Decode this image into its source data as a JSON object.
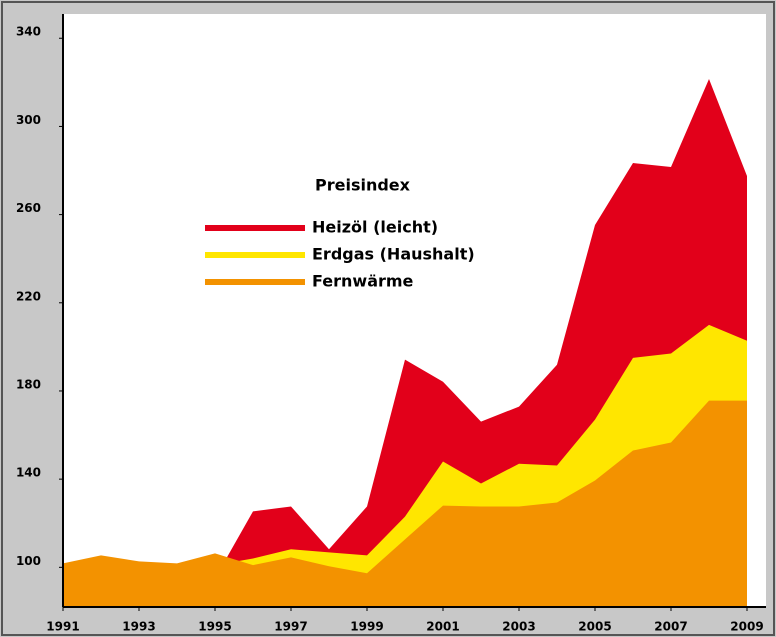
{
  "chart_data": {
    "type": "area",
    "legend_title": "Preisindex",
    "x": [
      1991,
      1992,
      1993,
      1994,
      1995,
      1996,
      1997,
      1998,
      1999,
      2000,
      2001,
      2002,
      2003,
      2004,
      2005,
      2006,
      2007,
      2008,
      2009
    ],
    "series": [
      {
        "name": "Heizöl (leicht)",
        "color": "#e2001a",
        "values": [
          95,
          95,
          92,
          90,
          95,
          125.4,
          127.6,
          108.2,
          127.6,
          194.2,
          184.2,
          166.1,
          172.9,
          191.9,
          255.3,
          283.4,
          281.6,
          321.5,
          277.5
        ]
      },
      {
        "name": "Erdgas (Haushalt)",
        "color": "#ffe600",
        "values": [
          100,
          100,
          100,
          100,
          101,
          104,
          108.2,
          106.8,
          105.4,
          123,
          148,
          138,
          147,
          146.2,
          167,
          195,
          197,
          210,
          202.8
        ]
      },
      {
        "name": "Fernwärme",
        "color": "#f39200",
        "values": [
          101.8,
          105.4,
          102.7,
          101.8,
          106.3,
          101,
          104.5,
          100.5,
          97.3,
          112.7,
          128,
          127.6,
          127.6,
          129.4,
          139.4,
          153,
          156.6,
          175.6,
          175.6
        ]
      }
    ],
    "xlim": [
      1991,
      2009.5
    ],
    "xticks": [
      1991,
      1993,
      1995,
      1997,
      1999,
      2001,
      2003,
      2005,
      2007,
      2009
    ],
    "ylim": [
      82,
      351
    ],
    "yticks": [
      100,
      140,
      180,
      220,
      260,
      300,
      340
    ]
  }
}
